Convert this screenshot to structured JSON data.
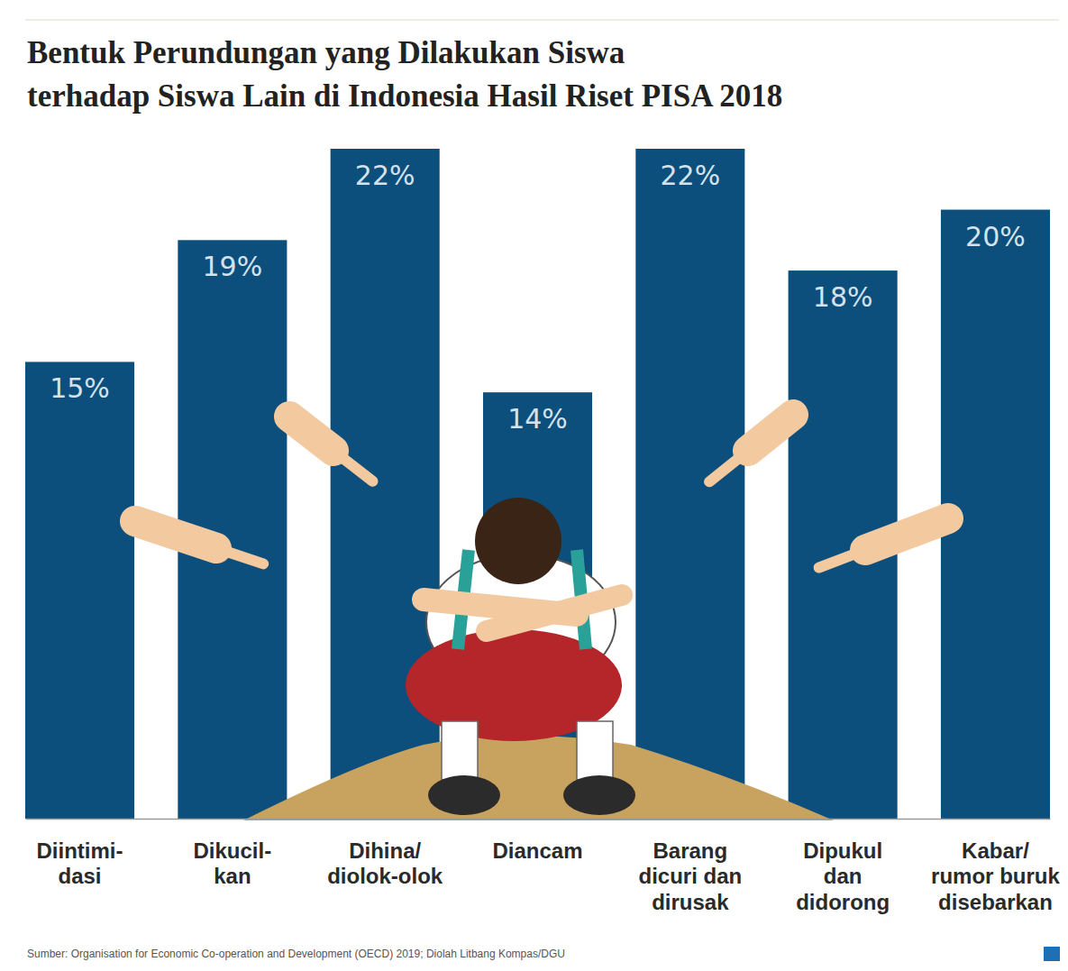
{
  "chart_data": {
    "type": "bar",
    "title": "Bentuk Perundungan yang Dilakukan Siswa\nterhadap Siswa Lain di Indonesia Hasil Riset PISA 2018",
    "categories": [
      "Diintimi-\ndasi",
      "Dikucil-\nkan",
      "Dihina/\ndiolok-olok",
      "Diancam",
      "Barang\ndicuri dan\ndirusak",
      "Dipukul\ndan\ndidorong",
      "Kabar/\nrumor buruk\ndisebarkan"
    ],
    "values": [
      15,
      19,
      22,
      14,
      22,
      18,
      20
    ],
    "value_labels": [
      "15%",
      "19%",
      "22%",
      "14%",
      "22%",
      "18%",
      "20%"
    ],
    "color": "#0d4f7c",
    "ylim": [
      0,
      22
    ],
    "data_labels": true,
    "tick_labels": "x",
    "source": "Sumber: Organisation for Economic Co-operation and Development (OECD) 2019; Diolah Litbang Kompas/DGU"
  }
}
